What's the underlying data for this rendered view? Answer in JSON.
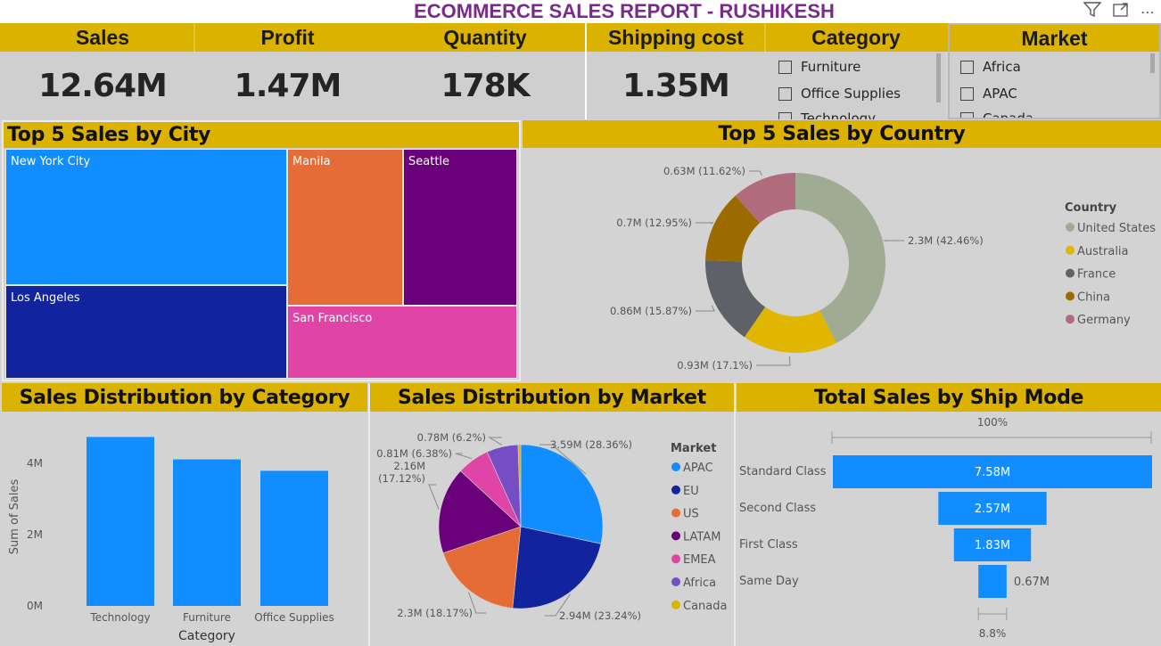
{
  "report_title": "ECOMMERCE SALES REPORT - RUSHIKESH",
  "kpis": [
    {
      "label": "Sales",
      "value": "12.64M"
    },
    {
      "label": "Profit",
      "value": "1.47M"
    },
    {
      "label": "Quantity",
      "value": "178K"
    },
    {
      "label": "Shipping cost",
      "value": "1.35M"
    }
  ],
  "category_slicer": {
    "title": "Category",
    "items": [
      "Furniture",
      "Office Supplies",
      "Technology"
    ]
  },
  "market_slicer": {
    "title": "Market",
    "items": [
      "Africa",
      "APAC",
      "Canada"
    ]
  },
  "toolbar_icons": [
    "filter-icon",
    "focus-mode-icon",
    "more-options-icon"
  ],
  "treemap": {
    "title": "Top 5 Sales by City",
    "tiles": [
      {
        "label": "New York City",
        "color": "#118dff"
      },
      {
        "label": "Los Angeles",
        "color": "#12239e"
      },
      {
        "label": "Manila",
        "color": "#e66c37"
      },
      {
        "label": "Seattle",
        "color": "#6b007b"
      },
      {
        "label": "San Francisco",
        "color": "#e044a7"
      }
    ]
  },
  "country_donut": {
    "title": "Top 5 Sales by Country",
    "legend_title": "Country",
    "slices": [
      {
        "name": "United States",
        "label": "2.3M (42.46%)",
        "pct": 42.46,
        "color": "#a0ab93"
      },
      {
        "name": "Australia",
        "label": "0.93M (17.1%)",
        "pct": 17.1,
        "color": "#e0b600"
      },
      {
        "name": "France",
        "label": "0.86M (15.87%)",
        "pct": 15.87,
        "color": "#5f6168"
      },
      {
        "name": "China",
        "label": "0.7M (12.95%)",
        "pct": 12.95,
        "color": "#9c6b00"
      },
      {
        "name": "Germany",
        "label": "0.63M (11.62%)",
        "pct": 11.62,
        "color": "#b06b7c"
      }
    ]
  },
  "chart_data": [
    {
      "type": "bar",
      "title": "Sales Distribution by Category",
      "categories": [
        "Technology",
        "Furniture",
        "Office Supplies"
      ],
      "values": [
        4.74,
        4.11,
        3.79
      ],
      "xlabel": "Category",
      "ylabel": "Sum of Sales",
      "yticks": [
        "0M",
        "2M",
        "4M"
      ],
      "ylim": [
        0,
        5
      ]
    },
    {
      "type": "pie",
      "title": "Sales Distribution by Market",
      "legend_title": "Market",
      "slices": [
        {
          "name": "APAC",
          "value": 3.59,
          "pct": 28.36,
          "label": "3.59M (28.36%)",
          "color": "#118dff"
        },
        {
          "name": "EU",
          "value": 2.94,
          "pct": 23.24,
          "label": "2.94M (23.24%)",
          "color": "#12239e"
        },
        {
          "name": "US",
          "value": 2.3,
          "pct": 18.17,
          "label": "2.3M (18.17%)",
          "color": "#e66c37"
        },
        {
          "name": "LATAM",
          "value": 2.16,
          "pct": 17.12,
          "label": "2.16M (17.12%)",
          "color": "#6b007b"
        },
        {
          "name": "EMEA",
          "value": 0.81,
          "pct": 6.38,
          "label": "0.81M (6.38%)",
          "color": "#e044a7"
        },
        {
          "name": "Africa",
          "value": 0.78,
          "pct": 6.2,
          "label": "0.78M (6.2%)",
          "color": "#744ec2"
        },
        {
          "name": "Canada",
          "value": 0.07,
          "pct": 0.53,
          "label": "",
          "color": "#d9b300"
        }
      ]
    },
    {
      "type": "bar",
      "title": "Total Sales by Ship Mode",
      "categories": [
        "Standard Class",
        "Second Class",
        "First Class",
        "Same Day"
      ],
      "values": [
        7.58,
        2.57,
        1.83,
        0.67
      ],
      "value_labels": [
        "7.58M",
        "2.57M",
        "1.83M",
        "0.67M"
      ],
      "top_label": "100%",
      "bottom_label": "8.8%",
      "color": "#118dff"
    }
  ]
}
